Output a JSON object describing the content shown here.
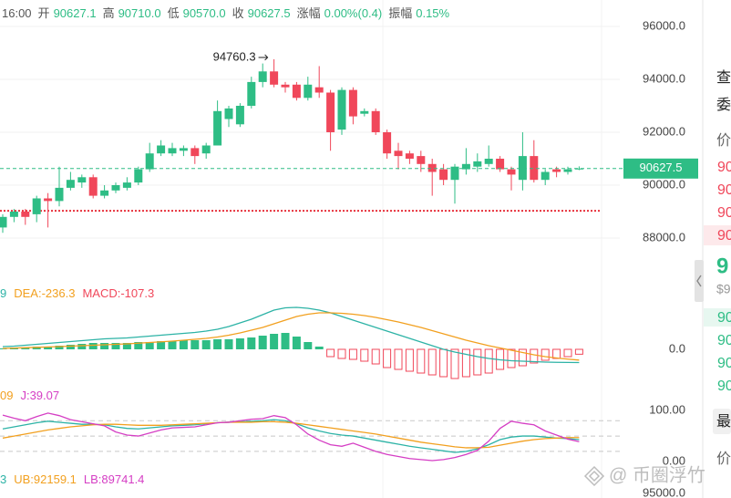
{
  "header": {
    "time": "16:00",
    "items": [
      {
        "label": "开",
        "value": "90627.1"
      },
      {
        "label": "高",
        "value": "90710.0"
      },
      {
        "label": "低",
        "value": "90570.0"
      },
      {
        "label": "收",
        "value": "90627.5"
      },
      {
        "label": "涨幅",
        "value": "0.00%(0.4)"
      },
      {
        "label": "振幅",
        "value": "0.15%"
      }
    ]
  },
  "chart_data": [
    {
      "type": "candlestick",
      "up_color": "#2ebd85",
      "down_color": "#f0475a",
      "ylim": [
        86800,
        97000
      ],
      "yticks": [
        {
          "value": 88000,
          "label": "88000.0"
        },
        {
          "value": 90000,
          "label": "90000.0"
        },
        {
          "value": 92000,
          "label": "92000.0"
        },
        {
          "value": 94000,
          "label": "94000.0"
        },
        {
          "value": 96000,
          "label": "96000.0"
        }
      ],
      "grid": true,
      "open": [
        88400,
        88800,
        89000,
        88900,
        89500,
        89400,
        89900,
        90100,
        90300,
        89600,
        89800,
        89900,
        90100,
        90600,
        91200,
        91200,
        91300,
        91400,
        91200,
        91500,
        92500,
        92300,
        93000,
        93900,
        94300,
        93800,
        93800,
        93300,
        93700,
        93500,
        92100,
        93600,
        92700,
        92800,
        92000,
        91300,
        91200,
        91100,
        90800,
        90600,
        90200,
        90600,
        90700,
        90800,
        91000,
        90600,
        90200,
        91100,
        90200,
        90600,
        90500,
        90627.1
      ],
      "high": [
        88900,
        89100,
        89100,
        89600,
        89700,
        90700,
        90500,
        90400,
        90400,
        90000,
        90100,
        90300,
        90700,
        91600,
        91700,
        91600,
        91500,
        91500,
        91600,
        93200,
        93000,
        93100,
        94100,
        94600,
        94760.3,
        93900,
        93900,
        94100,
        94500,
        93600,
        93700,
        93700,
        92900,
        92900,
        92100,
        91600,
        91300,
        91300,
        91000,
        90800,
        90800,
        91400,
        91200,
        91500,
        91100,
        90700,
        92000,
        91700,
        90600,
        90700,
        90700,
        90710
      ],
      "low": [
        88200,
        88600,
        88500,
        88600,
        88400,
        89200,
        89800,
        89900,
        89500,
        89500,
        89700,
        89800,
        90000,
        90500,
        91100,
        91100,
        91100,
        90800,
        91000,
        91500,
        92200,
        92200,
        92900,
        93700,
        93700,
        93500,
        93200,
        93200,
        93300,
        91300,
        91900,
        92300,
        92600,
        91900,
        91000,
        90600,
        90800,
        90500,
        89600,
        90000,
        89300,
        90400,
        90500,
        90700,
        90500,
        89800,
        89800,
        90100,
        90000,
        90300,
        90400,
        90570
      ],
      "close": [
        88800,
        89000,
        88800,
        89500,
        89400,
        89900,
        90200,
        90300,
        89600,
        89800,
        90000,
        90100,
        90600,
        91200,
        91500,
        91400,
        91400,
        91100,
        91500,
        92800,
        92900,
        93000,
        93900,
        94300,
        93800,
        93700,
        93300,
        93800,
        93500,
        92000,
        93600,
        92600,
        92800,
        92000,
        91200,
        91100,
        91000,
        90800,
        90500,
        90200,
        90700,
        90800,
        90900,
        91000,
        90600,
        90400,
        91100,
        90200,
        90500,
        90500,
        90600,
        90627.5
      ],
      "max_index": 24,
      "hline": 89030,
      "hline_color": "#e8323c"
    },
    {
      "type": "macd",
      "legend": [
        {
          "text": "9",
          "color": "#2db3a6"
        },
        {
          "text": "DEA:-236.3",
          "color": "#f2a01f"
        },
        {
          "text": "MACD:-107.3",
          "color": "#f0475a"
        }
      ],
      "ylim": [
        -840,
        960
      ],
      "yticks": [
        {
          "value": 0,
          "label": "0.0"
        }
      ],
      "up_color": "#2ebd85",
      "down_color": "#f0475a",
      "hist": [
        20,
        40,
        40,
        60,
        60,
        80,
        100,
        120,
        140,
        140,
        140,
        140,
        160,
        160,
        180,
        180,
        200,
        200,
        200,
        220,
        220,
        240,
        260,
        300,
        340,
        360,
        280,
        160,
        60,
        -160,
        -200,
        -220,
        -260,
        -320,
        -400,
        -440,
        -480,
        -520,
        -560,
        -600,
        -640,
        -600,
        -560,
        -520,
        -440,
        -400,
        -360,
        -300,
        -240,
        -200,
        -160,
        -107.3
      ],
      "series": [
        {
          "color": "#2db3a6",
          "values": [
            60,
            70,
            90,
            110,
            130,
            150,
            170,
            190,
            210,
            230,
            240,
            250,
            270,
            290,
            310,
            330,
            350,
            370,
            400,
            440,
            500,
            580,
            660,
            760,
            860,
            910,
            920,
            900,
            860,
            800,
            720,
            640,
            560,
            480,
            400,
            320,
            240,
            160,
            80,
            0,
            -60,
            -110,
            -160,
            -200,
            -230,
            -250,
            -260,
            -270,
            -280,
            -285,
            -288,
            -290
          ]
        },
        {
          "color": "#f2a01f",
          "values": [
            20,
            28,
            36,
            44,
            52,
            60,
            70,
            80,
            90,
            100,
            110,
            120,
            135,
            150,
            165,
            180,
            200,
            220,
            240,
            270,
            310,
            360,
            420,
            480,
            560,
            640,
            720,
            770,
            800,
            800,
            790,
            770,
            740,
            700,
            650,
            600,
            540,
            480,
            410,
            340,
            270,
            200,
            140,
            80,
            30,
            -20,
            -70,
            -120,
            -160,
            -190,
            -215,
            -236.3
          ]
        }
      ]
    },
    {
      "type": "kdj",
      "legend": [
        {
          "text": "09",
          "color": "#f2a01f"
        },
        {
          "text": "J:39.07",
          "color": "#d53ec4"
        }
      ],
      "ylim": [
        -10,
        118
      ],
      "yticks": [
        {
          "value": 0,
          "label": "0.00"
        },
        {
          "value": 100,
          "label": "100.00"
        }
      ],
      "levels": [
        20,
        50,
        80
      ],
      "series": [
        {
          "color": "#2db3a6",
          "values": [
            64,
            68,
            72,
            76,
            79,
            77,
            75,
            73,
            73,
            72,
            68,
            65,
            64,
            66,
            68,
            70,
            71,
            72,
            74,
            76,
            77,
            78,
            79,
            80,
            82,
            80,
            74,
            66,
            60,
            55,
            52,
            50,
            46,
            42,
            38,
            34,
            30,
            27,
            24,
            21,
            18,
            20,
            25,
            33,
            43,
            48,
            50,
            50,
            48,
            46,
            45,
            43
          ]
        },
        {
          "color": "#f2a01f",
          "values": [
            46,
            50,
            54,
            58,
            62,
            65,
            68,
            70,
            72,
            73,
            73,
            72,
            71,
            71,
            71,
            72,
            73,
            74,
            75,
            76,
            77,
            77,
            77,
            78,
            78,
            77,
            75,
            72,
            69,
            66,
            63,
            60,
            57,
            54,
            50,
            46,
            42,
            38,
            35,
            32,
            29,
            27,
            27,
            28,
            32,
            36,
            40,
            43,
            45,
            46,
            47,
            47
          ]
        },
        {
          "color": "#d53ec4",
          "values": [
            91,
            85,
            80,
            88,
            95,
            90,
            82,
            78,
            74,
            70,
            58,
            52,
            50,
            56,
            62,
            66,
            67,
            68,
            72,
            76,
            77,
            80,
            83,
            84,
            90,
            86,
            72,
            54,
            42,
            33,
            30,
            36,
            28,
            20,
            14,
            10,
            6,
            4,
            2,
            4,
            8,
            14,
            22,
            40,
            65,
            79,
            75,
            72,
            60,
            52,
            44,
            39.07
          ]
        }
      ]
    },
    {
      "type": "boll",
      "legend": [
        {
          "text": "3",
          "color": "#2db3a6"
        },
        {
          "text": "UB:92159.1",
          "color": "#f2a01f"
        },
        {
          "text": "LB:89741.4",
          "color": "#d53ec4"
        }
      ],
      "ylim": [
        92000,
        97000
      ],
      "yticks": [
        {
          "value": 95000,
          "label": "95000.0"
        }
      ]
    }
  ],
  "side_panel": {
    "tabs": [
      "查",
      "委"
    ],
    "col_head": "价",
    "asks": [
      "90",
      "90",
      "90",
      "90"
    ],
    "last": "9",
    "last_sub": "$9",
    "bids": [
      "90",
      "90",
      "90",
      "90"
    ],
    "bottom_tab": "最",
    "bottom_head": "价"
  },
  "watermark": "@ 币圈浮竹"
}
